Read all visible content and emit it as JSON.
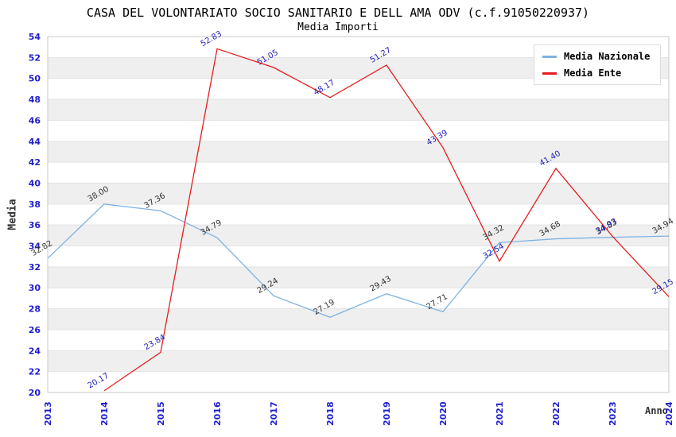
{
  "chart_data": {
    "type": "line",
    "title": "CASA DEL VOLONTARIATO SOCIO SANITARIO E DELL AMA ODV (c.f.91050220937)",
    "subtitle": "Media Importi",
    "xlabel": "Anno",
    "ylabel": "Media",
    "x": [
      "2013",
      "2014",
      "2015",
      "2016",
      "2017",
      "2018",
      "2019",
      "2020",
      "2021",
      "2022",
      "2023",
      "2024"
    ],
    "ylim": [
      20,
      54
    ],
    "ytick_step": 2,
    "grid": "alternating horizontal bands",
    "legend_position": "top-right",
    "series": [
      {
        "name": "Media Nazionale",
        "color": "#7EB2E3",
        "label_color": "#333333",
        "values": [
          "32.82",
          "38.00",
          "37.36",
          "34.79",
          "29.24",
          "27.19",
          "29.43",
          "27.71",
          "34.32",
          "34.68",
          "34.83",
          "34.94"
        ]
      },
      {
        "name": "Media Ente",
        "color": "#E51D1D",
        "label_color": "#2222BB",
        "values": [
          null,
          "20.17",
          "23.84",
          "52.83",
          "51.05",
          "48.17",
          "51.27",
          "43.39",
          "32.54",
          "41.40",
          "34.93",
          "29.15"
        ]
      }
    ],
    "colors": {
      "tick": "#1F1FD0",
      "band": "#EFEFEF",
      "grid": "#E3E3E3",
      "border": "#C9C9C9",
      "axis_text": "#333333"
    }
  }
}
